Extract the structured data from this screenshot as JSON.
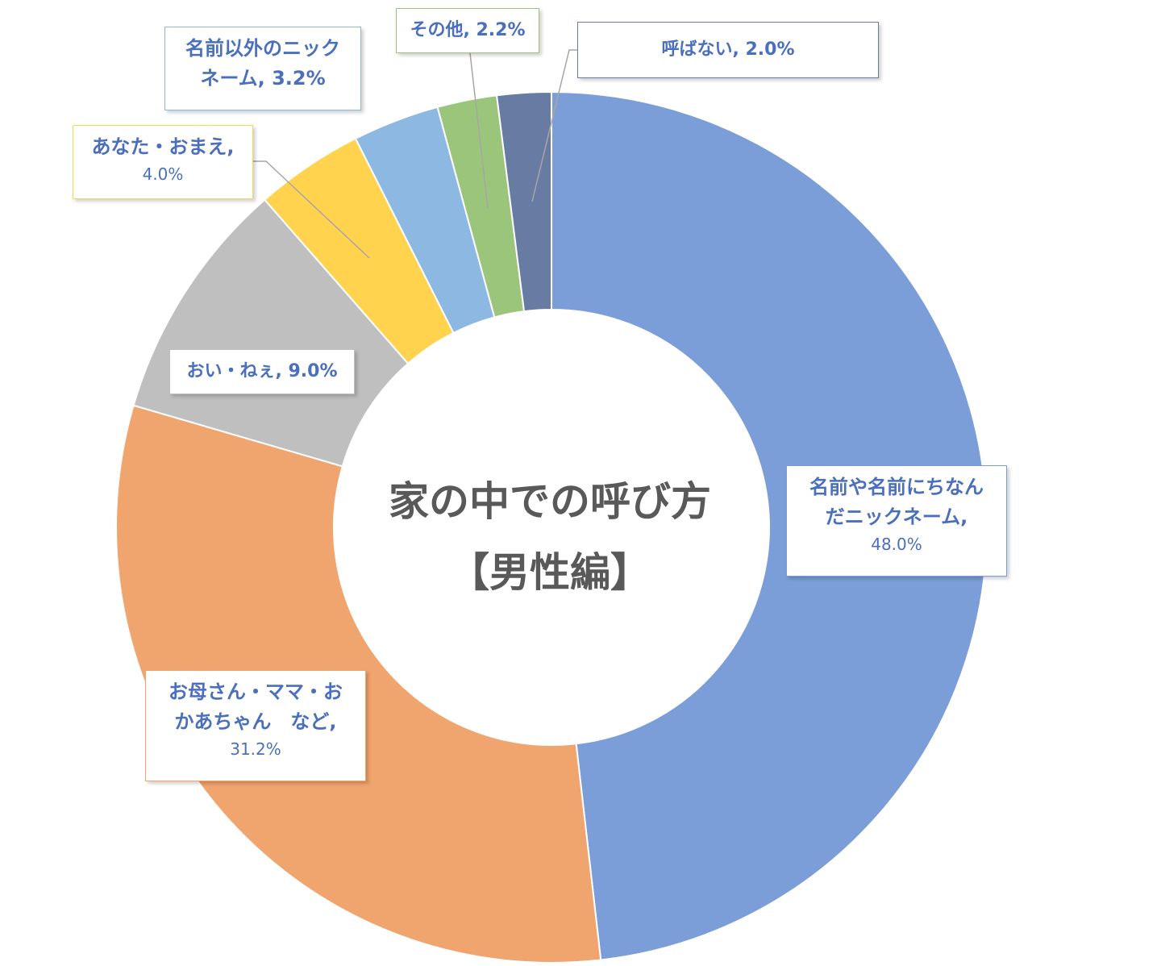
{
  "center_title": {
    "line1": "家の中での呼び方",
    "line2": "【男性編】"
  },
  "chart_data": {
    "type": "pie",
    "variant": "doughnut",
    "title": "家の中での呼び方【男性編】",
    "unit": "%",
    "slices": [
      {
        "label": "名前や名前にちなんだニックネーム",
        "value": 48.0,
        "display": "48.0%",
        "color": "#7b9ed8"
      },
      {
        "label": "お母さん・ママ・おかあちゃん　など",
        "value": 31.2,
        "display": "31.2%",
        "color": "#f0a46e"
      },
      {
        "label": "おい・ねぇ",
        "value": 9.0,
        "display": "9.0%",
        "color": "#bfbfbf"
      },
      {
        "label": "あなた・おまえ",
        "value": 4.0,
        "display": "4.0%",
        "color": "#ffd34d"
      },
      {
        "label": "名前以外のニックネーム",
        "value": 3.2,
        "display": "3.2%",
        "color": "#8db8e2"
      },
      {
        "label": "その他",
        "value": 2.2,
        "display": "2.2%",
        "color": "#9cc57c"
      },
      {
        "label": "呼ばない",
        "value": 2.0,
        "display": "2.0%",
        "color": "#687ca3"
      }
    ]
  },
  "labels": {
    "name_nickname": {
      "line1": "名前や名前にちなん",
      "line2": "だニックネーム,",
      "pct": "48.0%"
    },
    "mother": {
      "line1": "お母さん・ママ・お",
      "line2": "かあちゃん　など,",
      "pct": "31.2%"
    },
    "oi": {
      "text": "おい・ねぇ, 9.0%"
    },
    "anata": {
      "line1": "あなた・おまえ,",
      "pct": "4.0%"
    },
    "other_nickname": {
      "line1": "名前以外のニック",
      "line2": "ネーム, 3.2%"
    },
    "other": {
      "text": "その他, 2.2%"
    },
    "none": {
      "text": "呼ばない, 2.0%"
    }
  }
}
